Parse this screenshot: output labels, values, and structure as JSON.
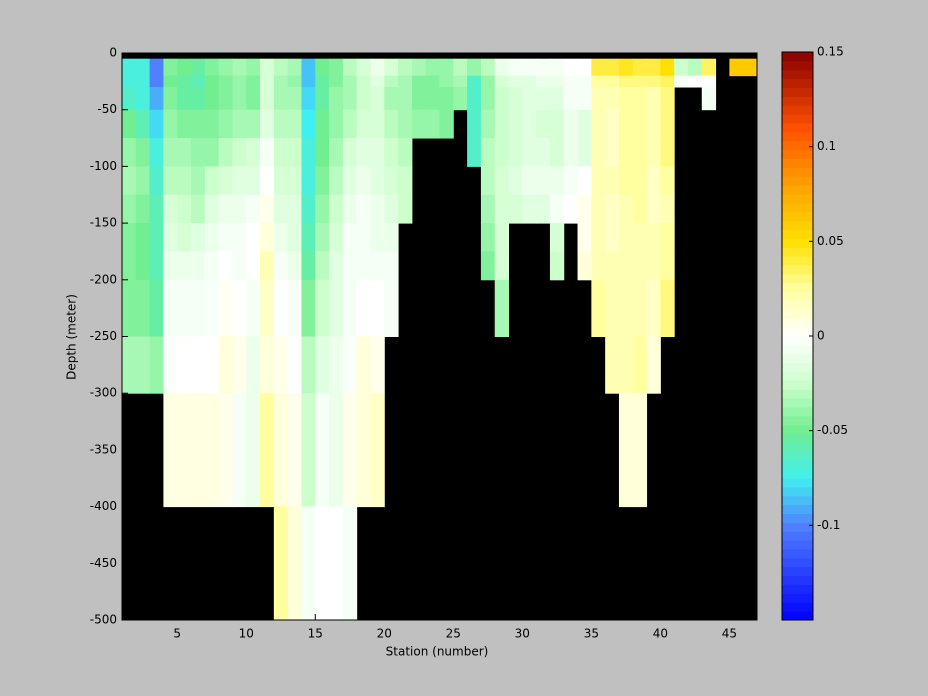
{
  "chart_data": {
    "type": "heatmap",
    "xlabel": "Station (number)",
    "ylabel": "Depth (meter)",
    "xlim": [
      1,
      47
    ],
    "ylim": [
      -500,
      0
    ],
    "xticks": [
      5,
      10,
      15,
      20,
      25,
      30,
      35,
      40,
      45
    ],
    "yticks": [
      0,
      -50,
      -100,
      -150,
      -200,
      -250,
      -300,
      -350,
      -400,
      -450,
      -500
    ],
    "x_edges": [
      1,
      2,
      3,
      4,
      5,
      6,
      7,
      8,
      9,
      10,
      11,
      12,
      13,
      14,
      15,
      16,
      17,
      18,
      19,
      20,
      21,
      22,
      23,
      24,
      25,
      26,
      27,
      28,
      29,
      30,
      31,
      32,
      33,
      34,
      35,
      36,
      37,
      38,
      39,
      40,
      41,
      42,
      43,
      44,
      45,
      46,
      47
    ],
    "depth_edges": [
      -5,
      -20,
      -30,
      -50,
      -75,
      -100,
      -125,
      -150,
      -175,
      -200,
      -250,
      -300,
      -400,
      -500
    ],
    "background": "#000000",
    "clim": [
      -0.15,
      0.15
    ],
    "cticks": [
      0.15,
      0.1,
      0.05,
      0,
      -0.05,
      -0.1
    ],
    "colormap": [
      {
        "value": -0.15,
        "color": "#0000ff"
      },
      {
        "value": -0.1,
        "color": "#5080ff"
      },
      {
        "value": -0.075,
        "color": "#40f0f0"
      },
      {
        "value": -0.05,
        "color": "#70ee90"
      },
      {
        "value": -0.025,
        "color": "#ccffcc"
      },
      {
        "value": 0,
        "color": "#ffffff"
      },
      {
        "value": 0.025,
        "color": "#ffffa0"
      },
      {
        "value": 0.05,
        "color": "#ffe000"
      },
      {
        "value": 0.08,
        "color": "#ffa000"
      },
      {
        "value": 0.11,
        "color": "#ff5000"
      },
      {
        "value": 0.15,
        "color": "#880000"
      }
    ],
    "z": [
      [
        -0.07,
        -0.07,
        -0.065,
        -0.05,
        -0.04,
        -0.035,
        -0.04,
        -0.045,
        -0.045,
        -0.045,
        -0.035,
        null,
        null
      ],
      [
        -0.07,
        -0.07,
        -0.07,
        -0.06,
        -0.045,
        -0.04,
        -0.045,
        -0.05,
        -0.05,
        -0.045,
        -0.035,
        null,
        null
      ],
      [
        -0.1,
        -0.1,
        -0.09,
        -0.08,
        -0.07,
        -0.065,
        -0.06,
        -0.06,
        -0.06,
        -0.055,
        -0.04,
        null,
        null
      ],
      [
        -0.045,
        -0.05,
        -0.045,
        -0.04,
        -0.035,
        -0.03,
        -0.02,
        -0.015,
        -0.01,
        -0.005,
        -0.002,
        0.008,
        null
      ],
      [
        -0.05,
        -0.055,
        -0.055,
        -0.045,
        -0.035,
        -0.03,
        -0.025,
        -0.02,
        -0.01,
        -0.005,
        0,
        0.008,
        null
      ],
      [
        -0.055,
        -0.06,
        -0.055,
        -0.045,
        -0.04,
        -0.035,
        -0.03,
        -0.015,
        -0.01,
        -0.005,
        0,
        0.008,
        null
      ],
      [
        -0.045,
        -0.05,
        -0.05,
        -0.045,
        -0.04,
        -0.025,
        -0.015,
        -0.01,
        -0.005,
        -0.003,
        0,
        0.008,
        null
      ],
      [
        -0.04,
        -0.045,
        -0.045,
        -0.04,
        -0.03,
        -0.02,
        -0.01,
        -0.005,
        0,
        0.003,
        0.01,
        0.005,
        null
      ],
      [
        -0.035,
        -0.04,
        -0.04,
        -0.035,
        -0.025,
        -0.015,
        -0.01,
        -0.005,
        -0.005,
        0,
        0.005,
        -0.005,
        null
      ],
      [
        -0.04,
        -0.045,
        -0.045,
        -0.035,
        -0.02,
        -0.015,
        -0.005,
        0,
        0,
        -0.005,
        -0.01,
        -0.01,
        null
      ],
      [
        -0.02,
        -0.02,
        -0.02,
        -0.015,
        -0.005,
        0,
        0.005,
        0.01,
        0.02,
        0.015,
        0.01,
        0.025,
        null
      ],
      [
        -0.03,
        -0.035,
        -0.035,
        -0.03,
        -0.025,
        -0.02,
        -0.015,
        -0.01,
        -0.005,
        0,
        0.005,
        0.01,
        0.025
      ],
      [
        -0.035,
        -0.04,
        -0.035,
        -0.03,
        -0.025,
        -0.02,
        -0.015,
        -0.015,
        -0.01,
        -0.005,
        0,
        0.005,
        0.01
      ],
      [
        -0.085,
        -0.085,
        -0.08,
        -0.075,
        -0.07,
        -0.07,
        -0.065,
        -0.06,
        -0.055,
        -0.045,
        -0.03,
        -0.025,
        -0.005
      ],
      [
        -0.05,
        -0.055,
        -0.055,
        -0.05,
        -0.05,
        -0.045,
        -0.04,
        -0.035,
        -0.03,
        -0.025,
        -0.015,
        -0.005,
        0
      ],
      [
        -0.045,
        -0.045,
        -0.04,
        -0.04,
        -0.035,
        -0.03,
        -0.025,
        -0.02,
        -0.015,
        -0.015,
        -0.01,
        -0.01,
        0
      ],
      [
        -0.03,
        -0.035,
        -0.035,
        -0.03,
        -0.02,
        -0.015,
        -0.01,
        -0.005,
        -0.005,
        -0.005,
        -0.003,
        0.005,
        -0.005
      ],
      [
        -0.02,
        -0.025,
        -0.025,
        -0.02,
        -0.015,
        -0.01,
        -0.005,
        -0.005,
        -0.005,
        0,
        0.01,
        0.01,
        null
      ],
      [
        -0.01,
        -0.015,
        -0.02,
        -0.02,
        -0.015,
        -0.015,
        -0.01,
        -0.01,
        -0.005,
        0,
        0.005,
        0.015,
        null
      ],
      [
        -0.02,
        -0.03,
        -0.035,
        -0.03,
        -0.025,
        -0.02,
        -0.015,
        -0.01,
        -0.005,
        -0.005,
        null,
        null,
        null
      ],
      [
        -0.03,
        -0.035,
        -0.035,
        -0.035,
        -0.03,
        -0.025,
        -0.025,
        null,
        null,
        null,
        null,
        null,
        null
      ],
      [
        -0.035,
        -0.045,
        -0.045,
        -0.04,
        null,
        null,
        null,
        null,
        null,
        null,
        null,
        null,
        null
      ],
      [
        -0.04,
        -0.045,
        -0.045,
        -0.04,
        null,
        null,
        null,
        null,
        null,
        null,
        null,
        null,
        null
      ],
      [
        -0.04,
        -0.04,
        -0.045,
        -0.045,
        null,
        null,
        null,
        null,
        null,
        null,
        null,
        null,
        null
      ],
      [
        -0.03,
        -0.035,
        -0.04,
        null,
        null,
        null,
        null,
        null,
        null,
        null,
        null,
        null,
        null
      ],
      [
        -0.04,
        -0.065,
        -0.065,
        -0.065,
        -0.065,
        null,
        null,
        null,
        null,
        null,
        null,
        null,
        null
      ],
      [
        -0.03,
        -0.04,
        -0.04,
        -0.035,
        -0.03,
        -0.03,
        -0.035,
        -0.04,
        -0.045,
        null,
        null,
        null,
        null
      ],
      [
        -0.01,
        -0.02,
        -0.025,
        -0.025,
        -0.025,
        -0.02,
        -0.02,
        -0.02,
        -0.02,
        -0.035,
        null,
        null,
        null
      ],
      [
        -0.005,
        -0.015,
        -0.02,
        -0.02,
        -0.02,
        -0.015,
        -0.02,
        null,
        null,
        null,
        null,
        null,
        null
      ],
      [
        -0.005,
        -0.015,
        -0.015,
        -0.015,
        -0.015,
        -0.01,
        -0.015,
        null,
        null,
        null,
        null,
        null,
        null
      ],
      [
        -0.005,
        -0.01,
        -0.015,
        -0.02,
        -0.015,
        -0.01,
        -0.015,
        null,
        null,
        null,
        null,
        null,
        null
      ],
      [
        -0.005,
        -0.01,
        -0.015,
        -0.02,
        -0.02,
        -0.01,
        -0.005,
        -0.02,
        -0.025,
        null,
        null,
        null,
        null
      ],
      [
        0,
        -0.005,
        -0.005,
        -0.01,
        -0.01,
        -0.005,
        0,
        null,
        null,
        null,
        null,
        null,
        null
      ],
      [
        0,
        -0.005,
        -0.005,
        -0.015,
        -0.015,
        0,
        0.005,
        0.005,
        0.01,
        null,
        null,
        null,
        null
      ],
      [
        0.04,
        0.025,
        0.02,
        0.02,
        0.02,
        0.02,
        0.02,
        0.02,
        0.02,
        0.025,
        null,
        null,
        null
      ],
      [
        0.04,
        0.025,
        0.02,
        0.015,
        0.015,
        0.02,
        0.015,
        0.015,
        0.02,
        0.02,
        0.02,
        null,
        null
      ],
      [
        0.045,
        0.03,
        0.025,
        0.025,
        0.025,
        0.025,
        0.02,
        0.02,
        0.02,
        0.02,
        0.02,
        0.01,
        null
      ],
      [
        0.04,
        0.03,
        0.025,
        0.025,
        0.025,
        0.025,
        0.025,
        0.02,
        0.02,
        0.02,
        0.025,
        0.01,
        null
      ],
      [
        0.04,
        0.03,
        0.02,
        0.02,
        0.02,
        0.015,
        0.015,
        0.02,
        0.02,
        0.015,
        0.01,
        null,
        null
      ],
      [
        0.05,
        0.035,
        0.03,
        0.03,
        0.03,
        0.025,
        0.02,
        0.025,
        0.025,
        0.03,
        null,
        null,
        null
      ],
      [
        -0.025,
        -0.005,
        null,
        null,
        null,
        null,
        null,
        null,
        null,
        null,
        null,
        null,
        null
      ],
      [
        -0.03,
        0,
        null,
        null,
        null,
        null,
        null,
        null,
        null,
        null,
        null,
        null,
        null
      ],
      [
        0.035,
        0,
        -0.005,
        null,
        null,
        null,
        null,
        null,
        null,
        null,
        null,
        null,
        null
      ],
      [
        null,
        null,
        null,
        null,
        null,
        null,
        null,
        null,
        null,
        null,
        null,
        null,
        null
      ],
      [
        0.06,
        null,
        null,
        null,
        null,
        null,
        null,
        null,
        null,
        null,
        null,
        null,
        null
      ],
      [
        0.06,
        null,
        null,
        null,
        null,
        null,
        null,
        null,
        null,
        null,
        null,
        null,
        null
      ]
    ]
  }
}
